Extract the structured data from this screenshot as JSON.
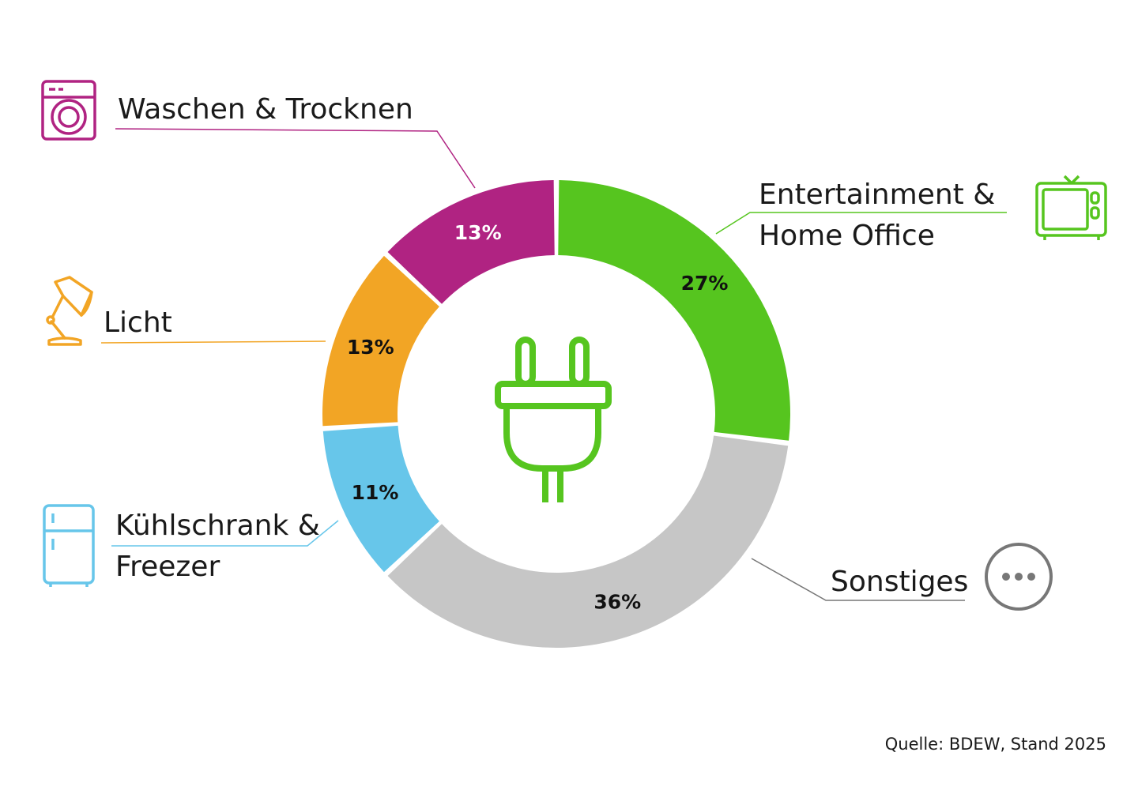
{
  "chart_data": {
    "type": "donut",
    "unit": "%",
    "segments": [
      {
        "id": "entertainment",
        "label_lines": [
          "Entertainment &",
          "Home Office"
        ],
        "value": 27,
        "value_label": "27%",
        "color": "#56c51f",
        "value_color": "#111111",
        "icon": "tv-icon"
      },
      {
        "id": "sonstiges",
        "label_lines": [
          "Sonstiges"
        ],
        "value": 36,
        "value_label": "36%",
        "color": "#c6c6c6",
        "value_color": "#111111",
        "icon": "more-dots-icon"
      },
      {
        "id": "kuehlschrank",
        "label_lines": [
          "Kühlschrank &",
          "Freezer"
        ],
        "value": 11,
        "value_label": "11%",
        "color": "#67c6ea",
        "value_color": "#111111",
        "icon": "fridge-icon"
      },
      {
        "id": "licht",
        "label_lines": [
          "Licht"
        ],
        "value": 13,
        "value_label": "13%",
        "color": "#f2a525",
        "value_color": "#111111",
        "icon": "desk-lamp-icon"
      },
      {
        "id": "waschen",
        "label_lines": [
          "Waschen & Trocknen"
        ],
        "value": 13,
        "value_label": "13%",
        "color": "#b02382",
        "value_color": "#ffffff",
        "icon": "washing-machine-icon"
      }
    ],
    "center_icon": "power-plug-icon",
    "center_icon_color": "#56c51f",
    "source": "Quelle: BDEW, Stand 2025"
  }
}
